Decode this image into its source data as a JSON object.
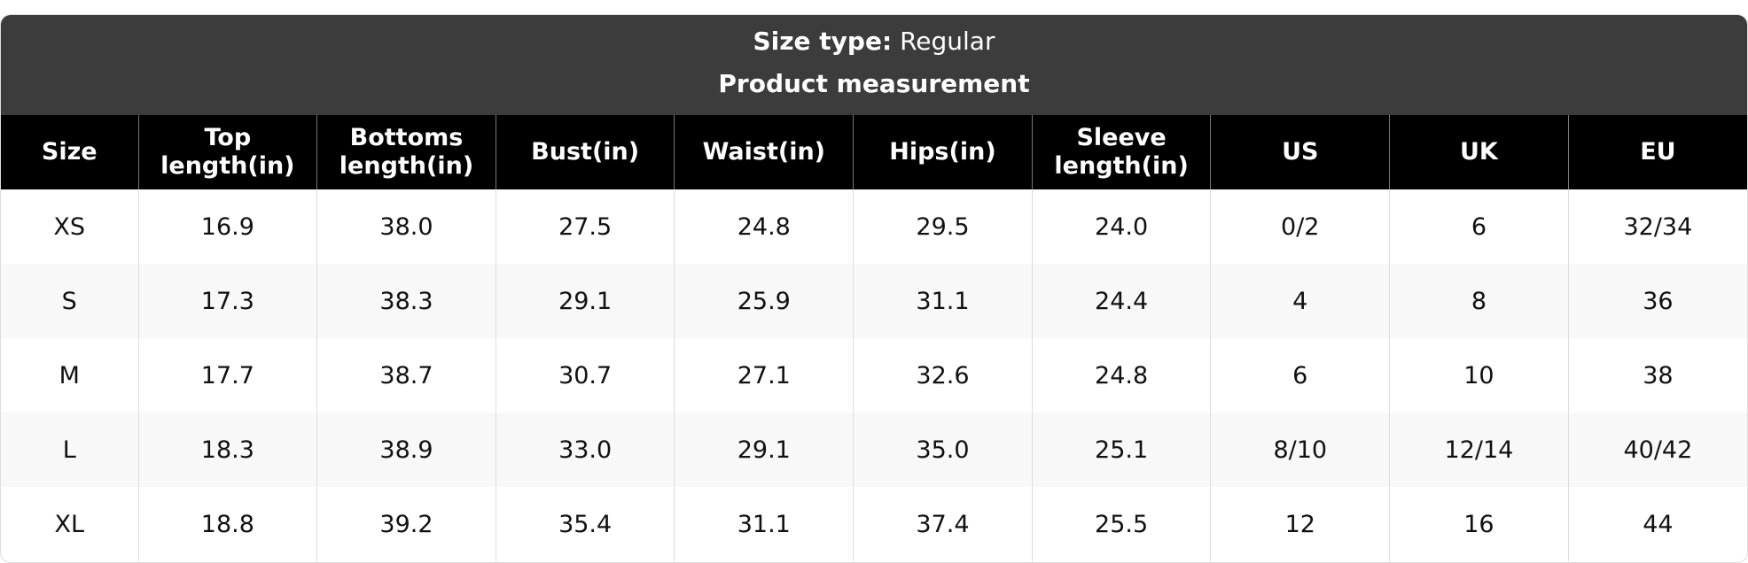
{
  "header": {
    "size_type_label": "Size type:",
    "size_type_value": "Regular",
    "subtitle": "Product measurement"
  },
  "table": {
    "columns": [
      "Size",
      "Top length(in)",
      "Bottoms length(in)",
      "Bust(in)",
      "Waist(in)",
      "Hips(in)",
      "Sleeve length(in)",
      "US",
      "UK",
      "EU"
    ],
    "rows": [
      [
        "XS",
        "16.9",
        "38.0",
        "27.5",
        "24.8",
        "29.5",
        "24.0",
        "0/2",
        "6",
        "32/34"
      ],
      [
        "S",
        "17.3",
        "38.3",
        "29.1",
        "25.9",
        "31.1",
        "24.4",
        "4",
        "8",
        "36"
      ],
      [
        "M",
        "17.7",
        "38.7",
        "30.7",
        "27.1",
        "32.6",
        "24.8",
        "6",
        "10",
        "38"
      ],
      [
        "L",
        "18.3",
        "38.9",
        "33.0",
        "29.1",
        "35.0",
        "25.1",
        "8/10",
        "12/14",
        "40/42"
      ],
      [
        "XL",
        "18.8",
        "39.2",
        "35.4",
        "31.1",
        "37.4",
        "25.5",
        "12",
        "16",
        "44"
      ]
    ]
  }
}
